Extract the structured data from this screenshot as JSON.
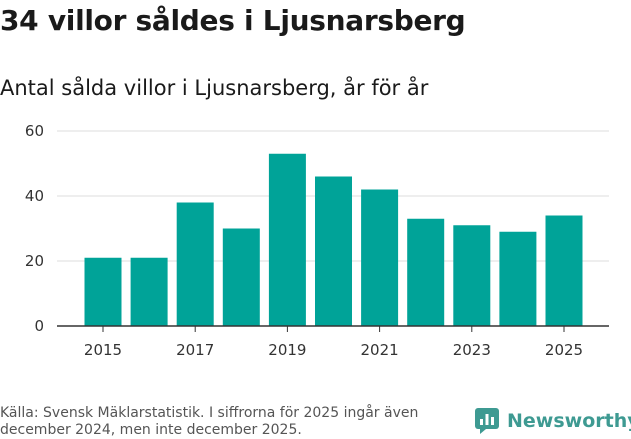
{
  "headline": "34 villor såldes i Ljusnarsberg",
  "footer": {
    "source": "Källa: Svensk Mäklarstatistik. I siffrorna för 2025 ingår även december 2024, men inte december 2025.",
    "brand": "Newsworthy"
  },
  "colors": {
    "bar": "#00a398",
    "gridline": "#dddddd",
    "axis": "#333333",
    "brand": "#3e9a92"
  },
  "chart_data": {
    "type": "bar",
    "title": "Antal sålda villor i Ljusnarsberg, år för år",
    "xlabel": "",
    "ylabel": "",
    "categories": [
      2015,
      2016,
      2017,
      2018,
      2019,
      2020,
      2021,
      2022,
      2023,
      2024,
      2025
    ],
    "values": [
      21,
      21,
      38,
      30,
      53,
      46,
      42,
      33,
      31,
      29,
      34
    ],
    "x_tick_labels": [
      "2015",
      "2017",
      "2019",
      "2021",
      "2023",
      "2025"
    ],
    "y_ticks": [
      0,
      20,
      40,
      60
    ],
    "ylim": [
      0,
      60
    ],
    "grid": true,
    "legend": "none"
  }
}
